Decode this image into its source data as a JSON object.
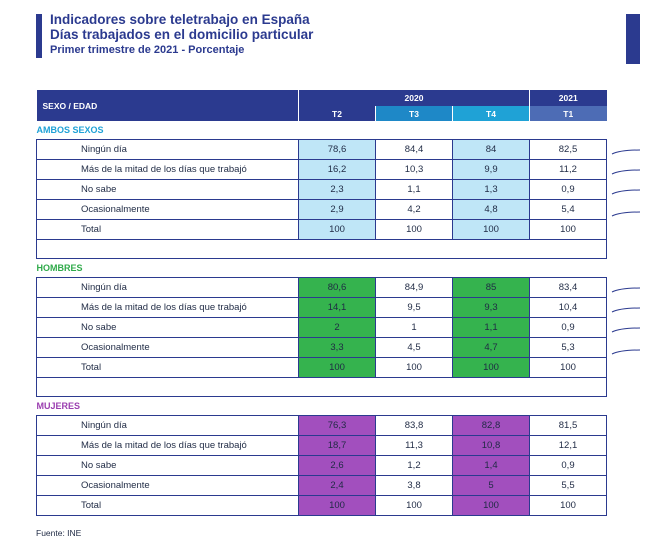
{
  "header": {
    "title_line1": "Indicadores sobre teletrabajo en España",
    "title_line2": "Días trabajados en el domicilio particular",
    "subtitle": "Primer trimestre de 2021 - Porcentaje"
  },
  "table": {
    "col_sexo": "SEXO / EDAD",
    "year_2020": "2020",
    "year_2021": "2021",
    "quarters": [
      "T2",
      "T3",
      "T4",
      "T1"
    ],
    "sections": [
      {
        "title": "AMBOS SEXOS",
        "rows": [
          {
            "label": "Ningún día",
            "values": [
              "78,6",
              "84,4",
              "84",
              "82,5"
            ]
          },
          {
            "label": "Más de la mitad de los días que trabajó",
            "values": [
              "16,2",
              "10,3",
              "9,9",
              "11,2"
            ]
          },
          {
            "label": "No sabe",
            "values": [
              "2,3",
              "1,1",
              "1,3",
              "0,9"
            ]
          },
          {
            "label": "Ocasionalmente",
            "values": [
              "2,9",
              "4,2",
              "4,8",
              "5,4"
            ]
          },
          {
            "label": "Total",
            "values": [
              "100",
              "100",
              "100",
              "100"
            ]
          }
        ]
      },
      {
        "title": "HOMBRES",
        "rows": [
          {
            "label": "Ningún día",
            "values": [
              "80,6",
              "84,9",
              "85",
              "83,4"
            ]
          },
          {
            "label": "Más de la mitad de los días que trabajó",
            "values": [
              "14,1",
              "9,5",
              "9,3",
              "10,4"
            ]
          },
          {
            "label": "No sabe",
            "values": [
              "2",
              "1",
              "1,1",
              "0,9"
            ]
          },
          {
            "label": "Ocasionalmente",
            "values": [
              "3,3",
              "4,5",
              "4,7",
              "5,3"
            ]
          },
          {
            "label": "Total",
            "values": [
              "100",
              "100",
              "100",
              "100"
            ]
          }
        ]
      },
      {
        "title": "MUJERES",
        "rows": [
          {
            "label": "Ningún día",
            "values": [
              "76,3",
              "83,8",
              "82,8",
              "81,5"
            ]
          },
          {
            "label": "Más de la mitad de los días que trabajó",
            "values": [
              "18,7",
              "11,3",
              "10,8",
              "12,1"
            ]
          },
          {
            "label": "No sabe",
            "values": [
              "2,6",
              "1,2",
              "1,4",
              "0,9"
            ]
          },
          {
            "label": "Ocasionalmente",
            "values": [
              "2,4",
              "3,8",
              "5",
              "5,5"
            ]
          },
          {
            "label": "Total",
            "values": [
              "100",
              "100",
              "100",
              "100"
            ]
          }
        ]
      }
    ]
  },
  "footer": {
    "source": "Fuente: INE"
  },
  "colors": {
    "navy": "#2b3a8f",
    "ambos": "#1fa2d6",
    "hombres": "#2faa4a",
    "mujeres": "#9b3fb0"
  }
}
